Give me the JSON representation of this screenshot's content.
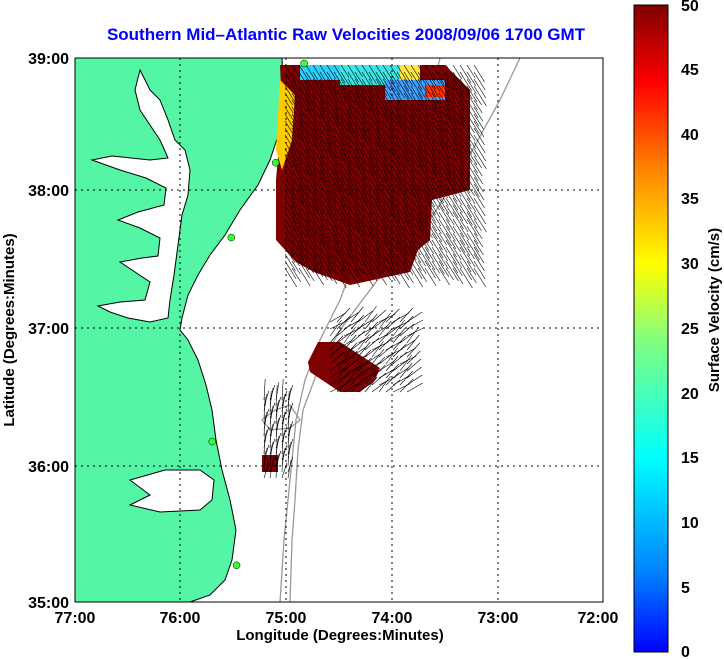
{
  "title": "Southern Mid–Atlantic Raw Velocities 2008/09/06 1700 GMT",
  "xlabel": "Longitude (Degrees:Minutes)",
  "ylabel": "Latitude (Degrees:Minutes)",
  "x_ticks": [
    "77:00",
    "76:00",
    "75:00",
    "74:00",
    "73:00",
    "72:00"
  ],
  "y_ticks": [
    "39:00",
    "38:00",
    "37:00",
    "36:00",
    "35:00"
  ],
  "colorbar": {
    "label": "Surface Velocity (cm/s)",
    "ticks": [
      "50",
      "45",
      "40",
      "35",
      "30",
      "25",
      "20",
      "15",
      "10",
      "5",
      "0"
    ],
    "range": [
      0,
      50
    ],
    "colormap": "jet"
  },
  "colors": {
    "land": "#55f5a6",
    "coast": "#000000",
    "bathymetry": "#999999",
    "high_velocity": "#7f0000",
    "station": "#33ff33"
  },
  "chart_data": {
    "type": "heatmap",
    "x_range_deg": [
      -77,
      -72
    ],
    "y_range_deg": [
      35,
      39
    ],
    "grid": true,
    "value_range": [
      0,
      50
    ],
    "stations": [
      {
        "lon": -74.83,
        "lat": 38.96
      },
      {
        "lon": -75.1,
        "lat": 38.23
      },
      {
        "lon": -75.52,
        "lat": 37.68
      },
      {
        "lon": -75.7,
        "lat": 36.18
      },
      {
        "lon": -75.47,
        "lat": 35.27
      }
    ]
  }
}
